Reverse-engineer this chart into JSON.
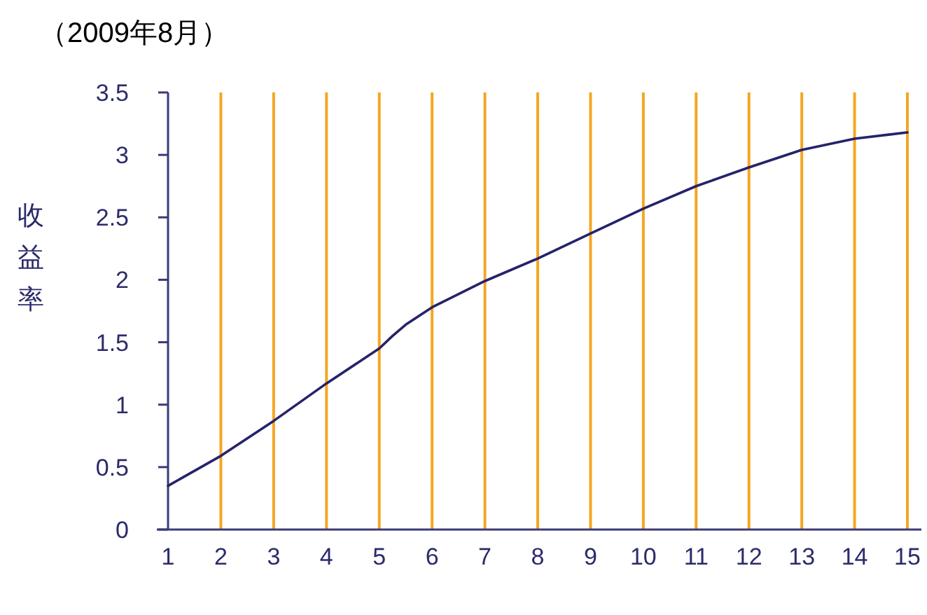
{
  "chart_data": {
    "type": "line",
    "title": "（2009年8月）",
    "ylabel": "收益率",
    "x": [
      1,
      2,
      3,
      4,
      5,
      5.25,
      5.5,
      6,
      7,
      8,
      9,
      10,
      11,
      12,
      13,
      14,
      15
    ],
    "series": [
      {
        "color": "#25236b",
        "values": [
          0.35,
          0.59,
          0.87,
          1.17,
          1.45,
          1.55,
          1.64,
          1.78,
          1.99,
          2.17,
          2.37,
          2.57,
          2.75,
          2.9,
          3.04,
          3.13,
          3.18
        ]
      }
    ],
    "xlim": [
      1,
      15
    ],
    "xticks": [
      1,
      2,
      3,
      4,
      5,
      6,
      7,
      8,
      9,
      10,
      11,
      12,
      13,
      14,
      15
    ],
    "ylim": [
      0,
      3.5
    ],
    "yticks": [
      0,
      0.5,
      1,
      1.5,
      2,
      2.5,
      3,
      3.5
    ],
    "grid": "x",
    "marker": "none",
    "line_style": "solid"
  }
}
